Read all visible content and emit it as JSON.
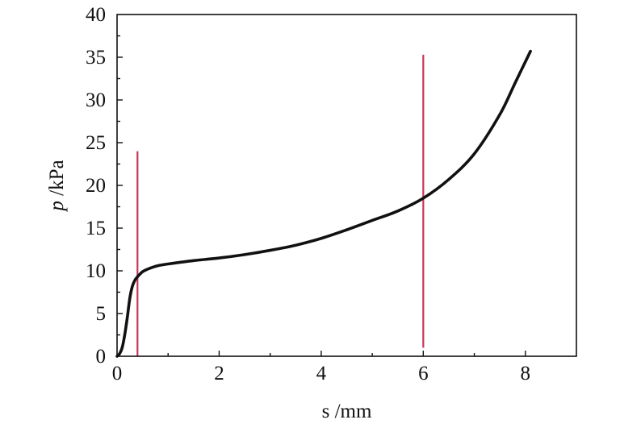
{
  "chart_data": {
    "type": "line",
    "title": "",
    "xlabel": {
      "var": "s",
      "unit": " /mm"
    },
    "ylabel": {
      "var": "p",
      "unit": " /kPa"
    },
    "xlim": [
      0,
      9
    ],
    "ylim": [
      0,
      40
    ],
    "xticks": [
      0,
      2,
      4,
      6,
      8
    ],
    "yticks": [
      0,
      5,
      10,
      15,
      20,
      25,
      30,
      35,
      40
    ],
    "grid": false,
    "legend": "none",
    "series": [
      {
        "color": "#111111",
        "x": [
          0.0,
          0.05,
          0.1,
          0.15,
          0.2,
          0.25,
          0.3,
          0.35,
          0.4,
          0.5,
          0.6,
          0.8,
          1.0,
          1.5,
          2.0,
          2.5,
          3.0,
          3.5,
          4.0,
          4.5,
          5.0,
          5.5,
          6.0,
          6.5,
          7.0,
          7.5,
          7.8,
          8.1
        ],
        "y": [
          0.0,
          0.3,
          1.0,
          2.5,
          4.5,
          6.8,
          8.2,
          8.9,
          9.3,
          9.9,
          10.2,
          10.6,
          10.8,
          11.2,
          11.5,
          11.9,
          12.4,
          13.0,
          13.8,
          14.8,
          15.9,
          17.0,
          18.5,
          20.7,
          23.7,
          28.3,
          32.0,
          35.7
        ]
      }
    ],
    "markers": [
      {
        "x": 0.4,
        "y_from": 0,
        "y_to": 24,
        "color": "#c8365a"
      },
      {
        "x": 6.0,
        "y_from": 1,
        "y_to": 35.3,
        "color": "#c8365a"
      }
    ]
  }
}
